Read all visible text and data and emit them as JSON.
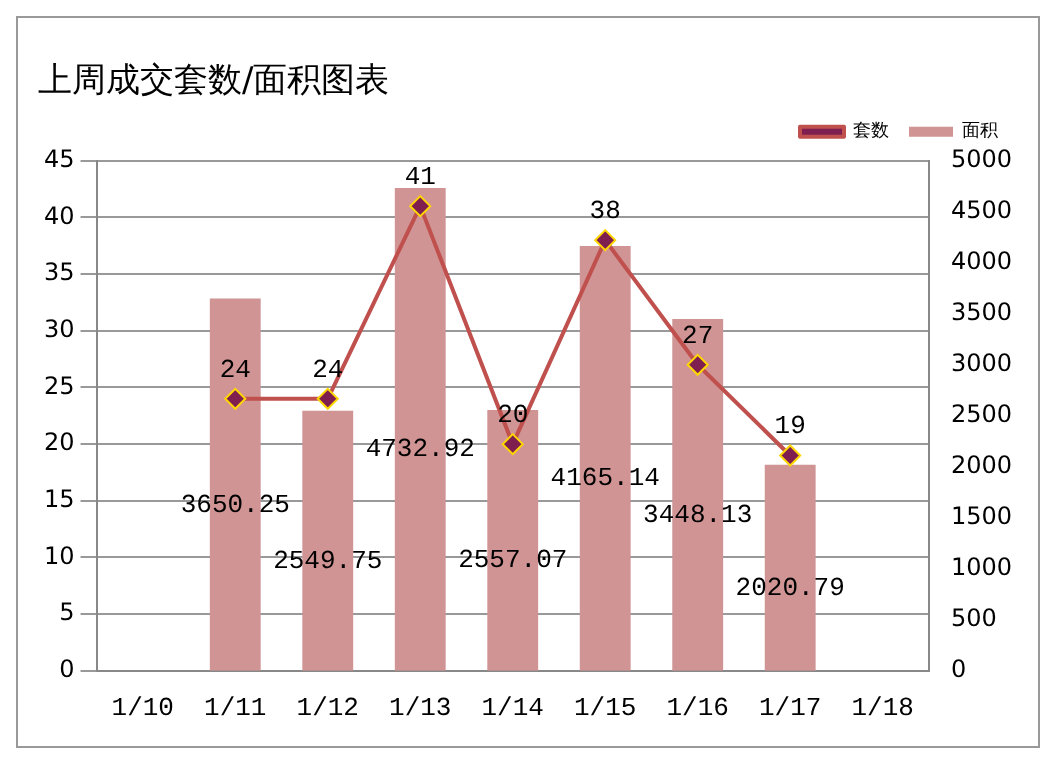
{
  "chart_data": {
    "type": "bar",
    "title": "上周成交套数/面积图表",
    "categories": [
      "1/10",
      "1/11",
      "1/12",
      "1/13",
      "1/14",
      "1/15",
      "1/16",
      "1/17",
      "1/18"
    ],
    "ylim": [
      0,
      45
    ],
    "yticks": [
      0,
      5,
      10,
      15,
      20,
      25,
      30,
      35,
      40,
      45
    ],
    "y2lim": [
      0,
      5000
    ],
    "y2ticks": [
      0,
      500,
      1000,
      1500,
      2000,
      2500,
      3000,
      3500,
      4000,
      4500,
      5000
    ],
    "series": [
      {
        "name": "面积",
        "axis": "y2",
        "color": "#d09494",
        "values": [
          null,
          3650.25,
          2549.75,
          4732.92,
          2557.07,
          4165.14,
          3448.13,
          2020.79,
          null
        ]
      },
      {
        "name": "套数",
        "type": "line",
        "axis": "y",
        "color": "#c0504d",
        "values": [
          null,
          24,
          24,
          41,
          20,
          38,
          27,
          19,
          null
        ]
      }
    ],
    "marker": "diamond",
    "data_labels": true,
    "grid": "y",
    "legend": "top right"
  }
}
